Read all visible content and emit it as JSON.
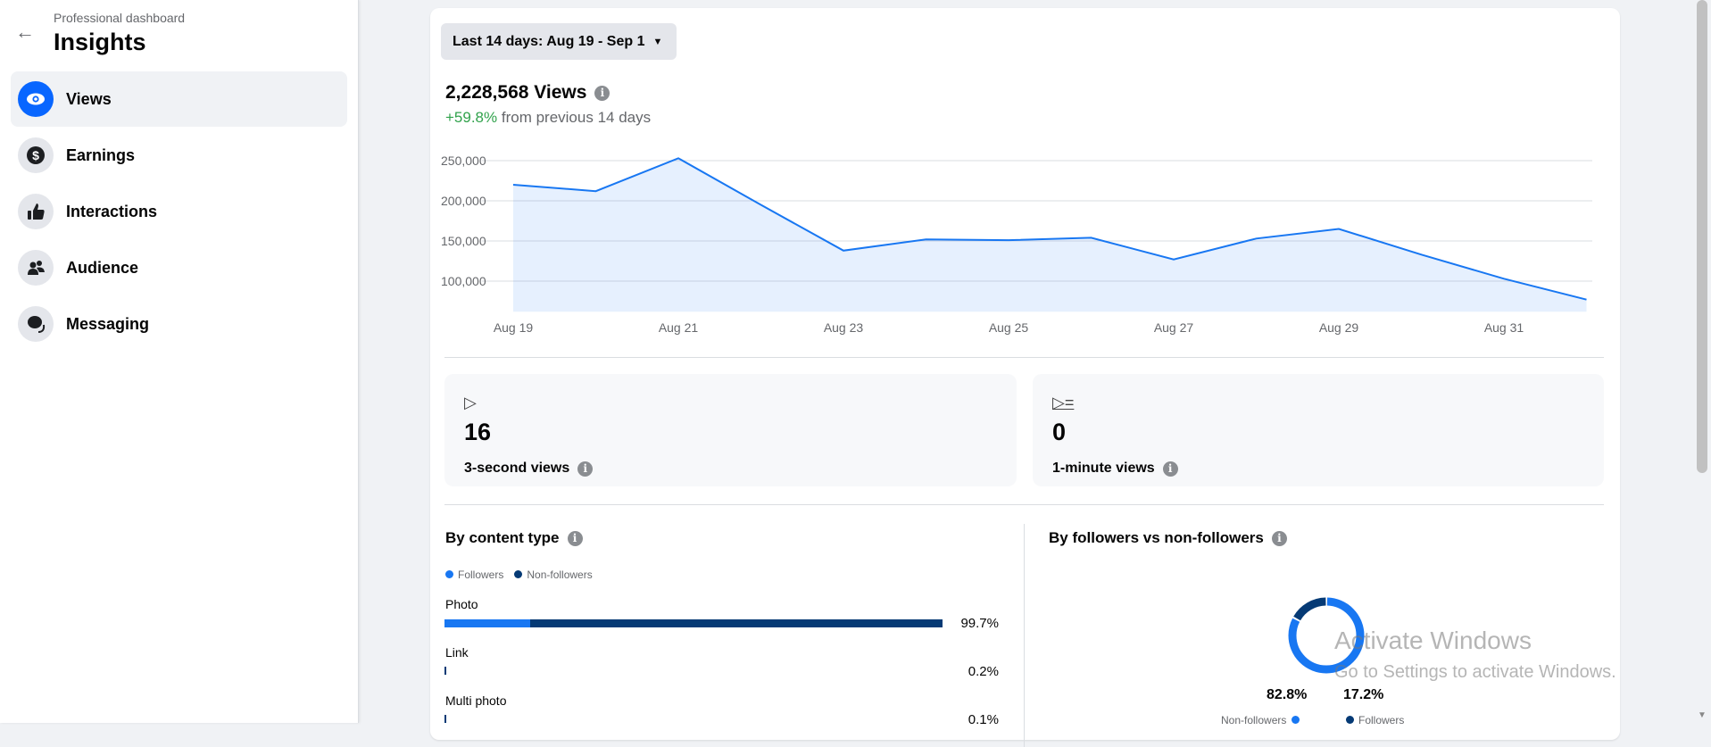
{
  "sidebar": {
    "subtitle": "Professional dashboard",
    "title": "Insights",
    "items": [
      {
        "label": "Views",
        "icon": "eye-icon",
        "selected": true
      },
      {
        "label": "Earnings",
        "icon": "dollar-icon"
      },
      {
        "label": "Interactions",
        "icon": "thumbs-up-icon"
      },
      {
        "label": "Audience",
        "icon": "people-icon"
      },
      {
        "label": "Messaging",
        "icon": "chat-icon"
      }
    ]
  },
  "main": {
    "date_range": "Last 14 days: Aug 19 - Sep 1",
    "total": "2,228,568 Views",
    "change_pct": "+59.8%",
    "change_text": " from previous 14 days",
    "stats": [
      {
        "value": "16",
        "label": "3-second views",
        "icon": "play-icon"
      },
      {
        "value": "0",
        "label": "1-minute views",
        "icon": "play-list-icon"
      }
    ],
    "content_type": {
      "title": "By content type",
      "legend": [
        "Followers",
        "Non-followers"
      ],
      "rows": [
        {
          "label": "Photo",
          "pct": "99.7%",
          "value": 99.7,
          "followers_share": 17.2
        },
        {
          "label": "Link",
          "pct": "0.2%",
          "value": 0.2
        },
        {
          "label": "Multi photo",
          "pct": "0.1%",
          "value": 0.1
        }
      ]
    },
    "followers": {
      "title": "By followers vs non-followers",
      "non_followers_pct": "82.8%",
      "non_followers_label": "Non-followers",
      "followers_pct": "17.2%",
      "followers_label": "Followers"
    }
  },
  "colors": {
    "accent": "#0866ff",
    "line": "#1877f2",
    "followers": "#1877f2",
    "non_followers": "#053a75",
    "positive": "#31a24c"
  },
  "watermark": {
    "line1": "Activate Windows",
    "line2": "Go to Settings to activate Windows."
  },
  "chart_data": {
    "type": "area",
    "x": [
      "Aug 19",
      "Aug 20",
      "Aug 21",
      "Aug 22",
      "Aug 23",
      "Aug 24",
      "Aug 25",
      "Aug 26",
      "Aug 27",
      "Aug 28",
      "Aug 29",
      "Aug 30",
      "Aug 31",
      "Sep 1"
    ],
    "values": [
      220000,
      212000,
      253000,
      195000,
      138000,
      152000,
      151000,
      154000,
      127000,
      153000,
      165000,
      133000,
      103000,
      77000
    ],
    "x_tick_labels": [
      "Aug 19",
      "Aug 21",
      "Aug 23",
      "Aug 25",
      "Aug 27",
      "Aug 29",
      "Aug 31"
    ],
    "y_tick_labels": [
      "250,000",
      "200,000",
      "150,000",
      "100,000"
    ],
    "y_ticks": [
      250000,
      200000,
      150000,
      100000
    ],
    "ylim": [
      62000,
      262000
    ],
    "grid": true
  }
}
